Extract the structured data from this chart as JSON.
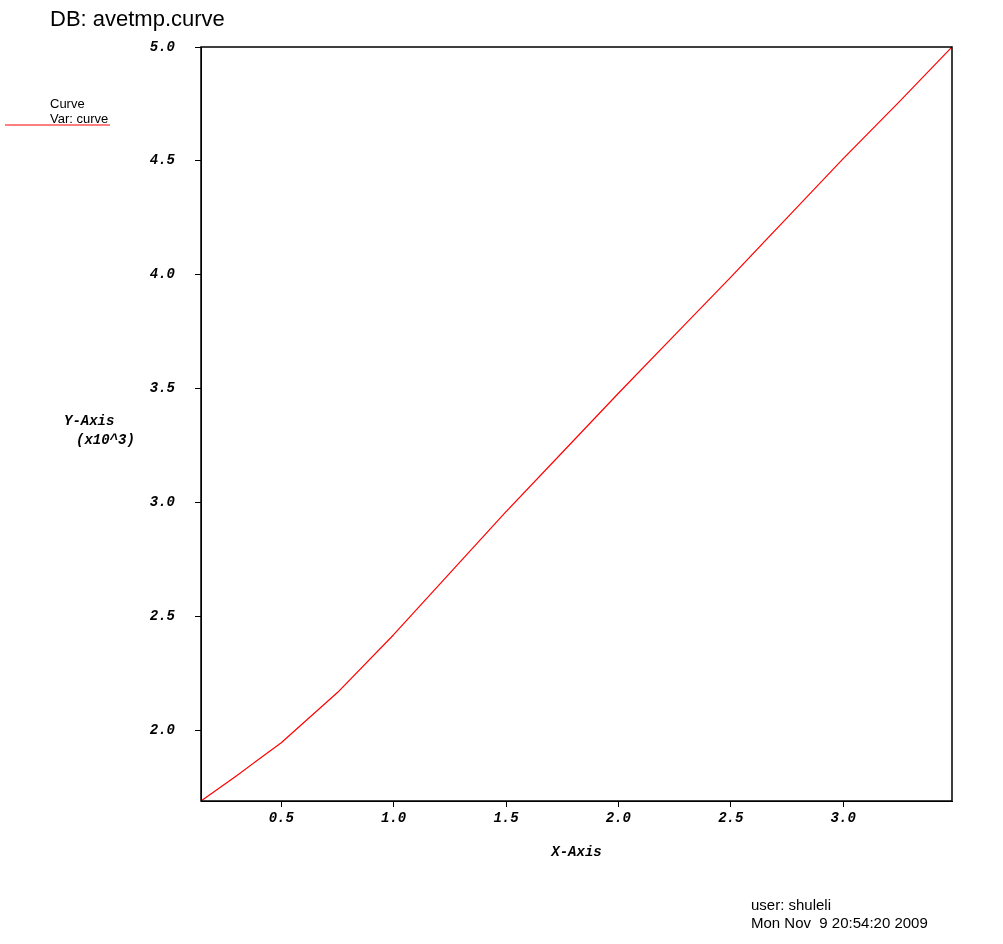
{
  "chart_data": {
    "type": "line",
    "title": "DB: avetmp.curve",
    "xlabel": "X-Axis",
    "ylabel": "Y-Axis\n(x10^3)",
    "legend_title": "Curve",
    "legend": "top left",
    "grid": false,
    "marker": "none",
    "line_style": "solid",
    "x": [
      0.143,
      0.3,
      0.5,
      0.75,
      1.0,
      1.25,
      1.5,
      1.75,
      2.0,
      2.25,
      2.5,
      2.75,
      3.0,
      3.25,
      3.484
    ],
    "series": [
      {
        "name": "Var: curve",
        "color": "#ff0000",
        "values": [
          1.69,
          1.8,
          1.946,
          2.166,
          2.42,
          2.69,
          2.96,
          3.22,
          3.48,
          3.735,
          3.99,
          4.25,
          4.51,
          4.76,
          5.0
        ]
      }
    ],
    "xlim": [
      0.143,
      3.484
    ],
    "xticks": [
      {
        "value": 0.5,
        "label": "0.5"
      },
      {
        "value": 1,
        "label": "1.0"
      },
      {
        "value": 1.5,
        "label": "1.5"
      },
      {
        "value": 2,
        "label": "2.0"
      },
      {
        "value": 2.5,
        "label": "2.5"
      },
      {
        "value": 3,
        "label": "3.0"
      }
    ],
    "ylim": [
      1.69,
      5.0
    ],
    "yticks": [
      {
        "value": 2,
        "label": "2.0"
      },
      {
        "value": 2.5,
        "label": "2.5"
      },
      {
        "value": 3,
        "label": "3.0"
      },
      {
        "value": 3.5,
        "label": "3.5"
      },
      {
        "value": 4,
        "label": "4.0"
      },
      {
        "value": 4.5,
        "label": "4.5"
      },
      {
        "value": 5,
        "label": "5.0"
      }
    ],
    "annotations": [
      "user: shuleli",
      "Mon Nov  9 20:54:20 2009"
    ]
  }
}
